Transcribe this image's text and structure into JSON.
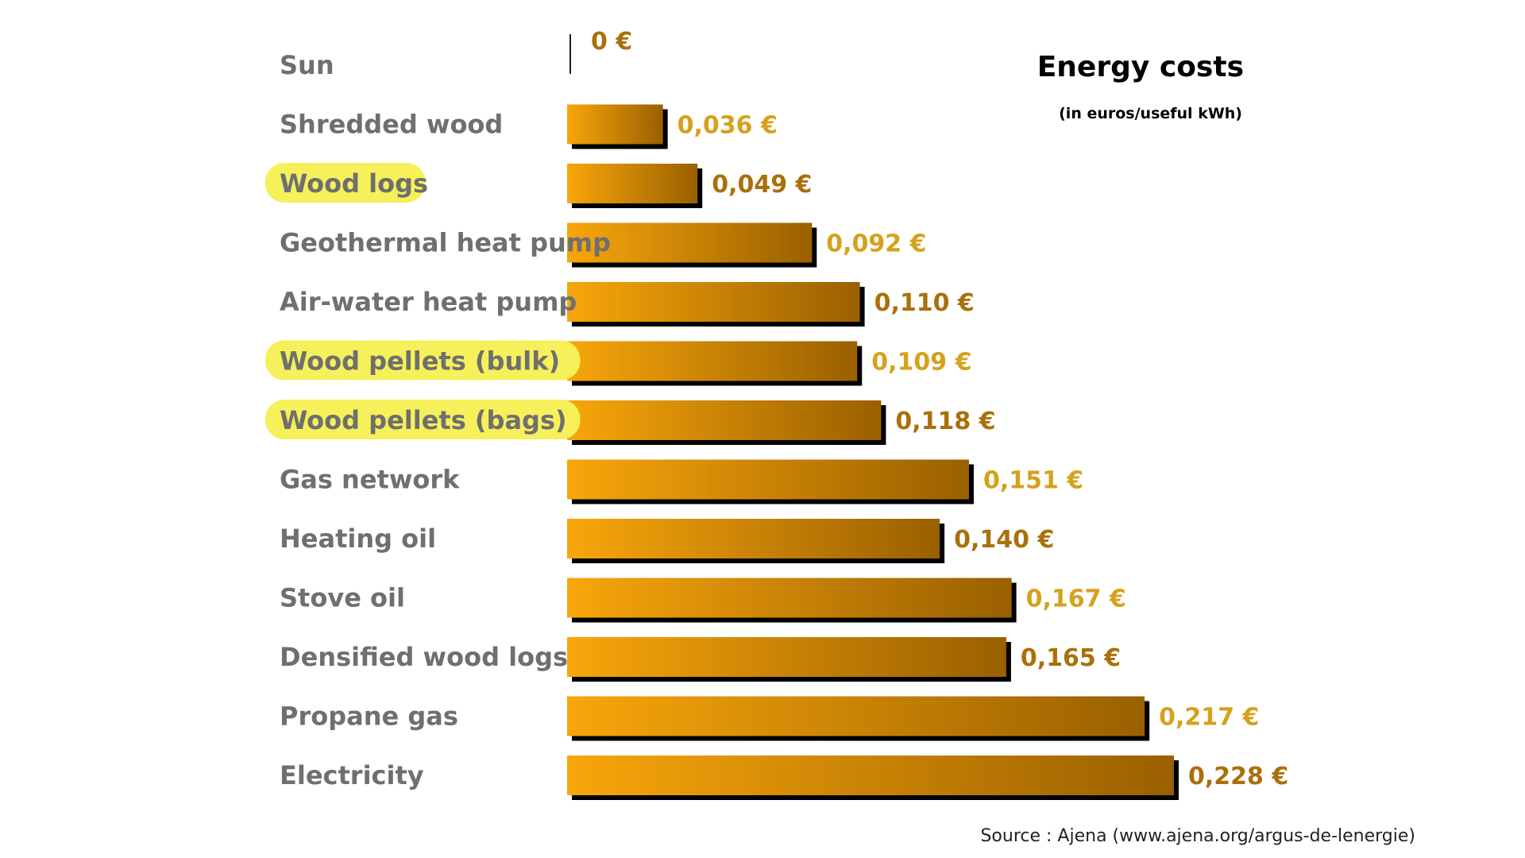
{
  "colors": {
    "bar_start": "#f8a60a",
    "bar_end": "#9a6000",
    "shadow": "#000000",
    "highlight": "#f6f05a",
    "label_text": "#6f6f6f",
    "value_gold": "#d6a11c",
    "value_brown": "#a9700b"
  },
  "chart_data": {
    "type": "bar",
    "orientation": "horizontal",
    "title": "Energy costs",
    "subtitle": "(in euros/useful kWh)",
    "source": "Source : Ajena (www.ajena.org/argus-de-lenergie)",
    "categories": [
      "Sun",
      "Shredded wood",
      "Wood logs",
      "Geothermal heat pump",
      "Air-water heat pump",
      "Wood pellets (bulk)",
      "Wood pellets (bags)",
      "Gas network",
      "Heating oil",
      "Stove oil",
      "Densified wood logs",
      "Propane gas",
      "Electricity"
    ],
    "values": [
      0,
      0.036,
      0.049,
      0.092,
      0.11,
      0.109,
      0.118,
      0.151,
      0.14,
      0.167,
      0.165,
      0.217,
      0.228
    ],
    "value_labels": [
      "0 €",
      "0,036 €",
      "0,049 €",
      "0,092 €",
      "0,110 €",
      "0,109 €",
      "0,118 €",
      "0,151 €",
      "0,140 €",
      "0,167 €",
      "0,165 €",
      "0,217 €",
      "0,228 €"
    ],
    "highlighted": [
      "Wood logs",
      "Wood pellets (bulk)",
      "Wood pellets (bags)"
    ],
    "xlim": [
      0,
      0.228
    ],
    "grid": false,
    "legend": "none"
  }
}
